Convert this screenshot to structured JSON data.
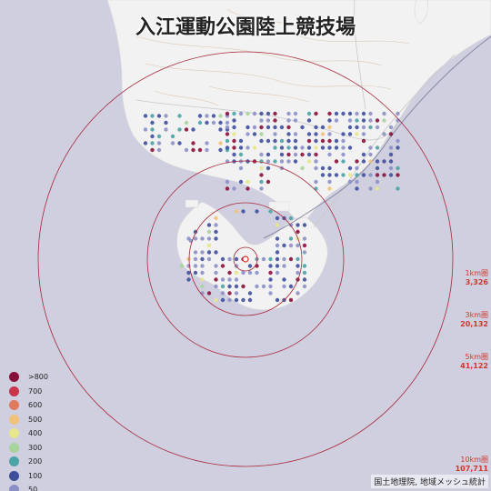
{
  "title": "入江運動公園陸上競技場",
  "rings": [
    {
      "label": "1km圏",
      "population": "3,326"
    },
    {
      "label": "3km圏",
      "population": "20,132"
    },
    {
      "label": "5km圏",
      "population": "41,122"
    },
    {
      "label": "10km圏",
      "population": "107,711"
    }
  ],
  "legend": [
    {
      "label": ">800",
      "color": "#8a0e3a"
    },
    {
      "label": "700",
      "color": "#c9344a"
    },
    {
      "label": "600",
      "color": "#e07a5f"
    },
    {
      "label": "500",
      "color": "#f0c27a"
    },
    {
      "label": "400",
      "color": "#e6e68a"
    },
    {
      "label": "300",
      "color": "#a6d49a"
    },
    {
      "label": "200",
      "color": "#4aa3a6"
    },
    {
      "label": "100",
      "color": "#3e4f9c"
    },
    {
      "label": "50",
      "color": "#8b8fc6"
    }
  ],
  "credit": "国土地理院, 地域メッシュ統計",
  "colors": {
    "water": "#cfcfe0",
    "land": "#f2f2f2",
    "ring": "#a8283a",
    "center": "#e03030"
  }
}
